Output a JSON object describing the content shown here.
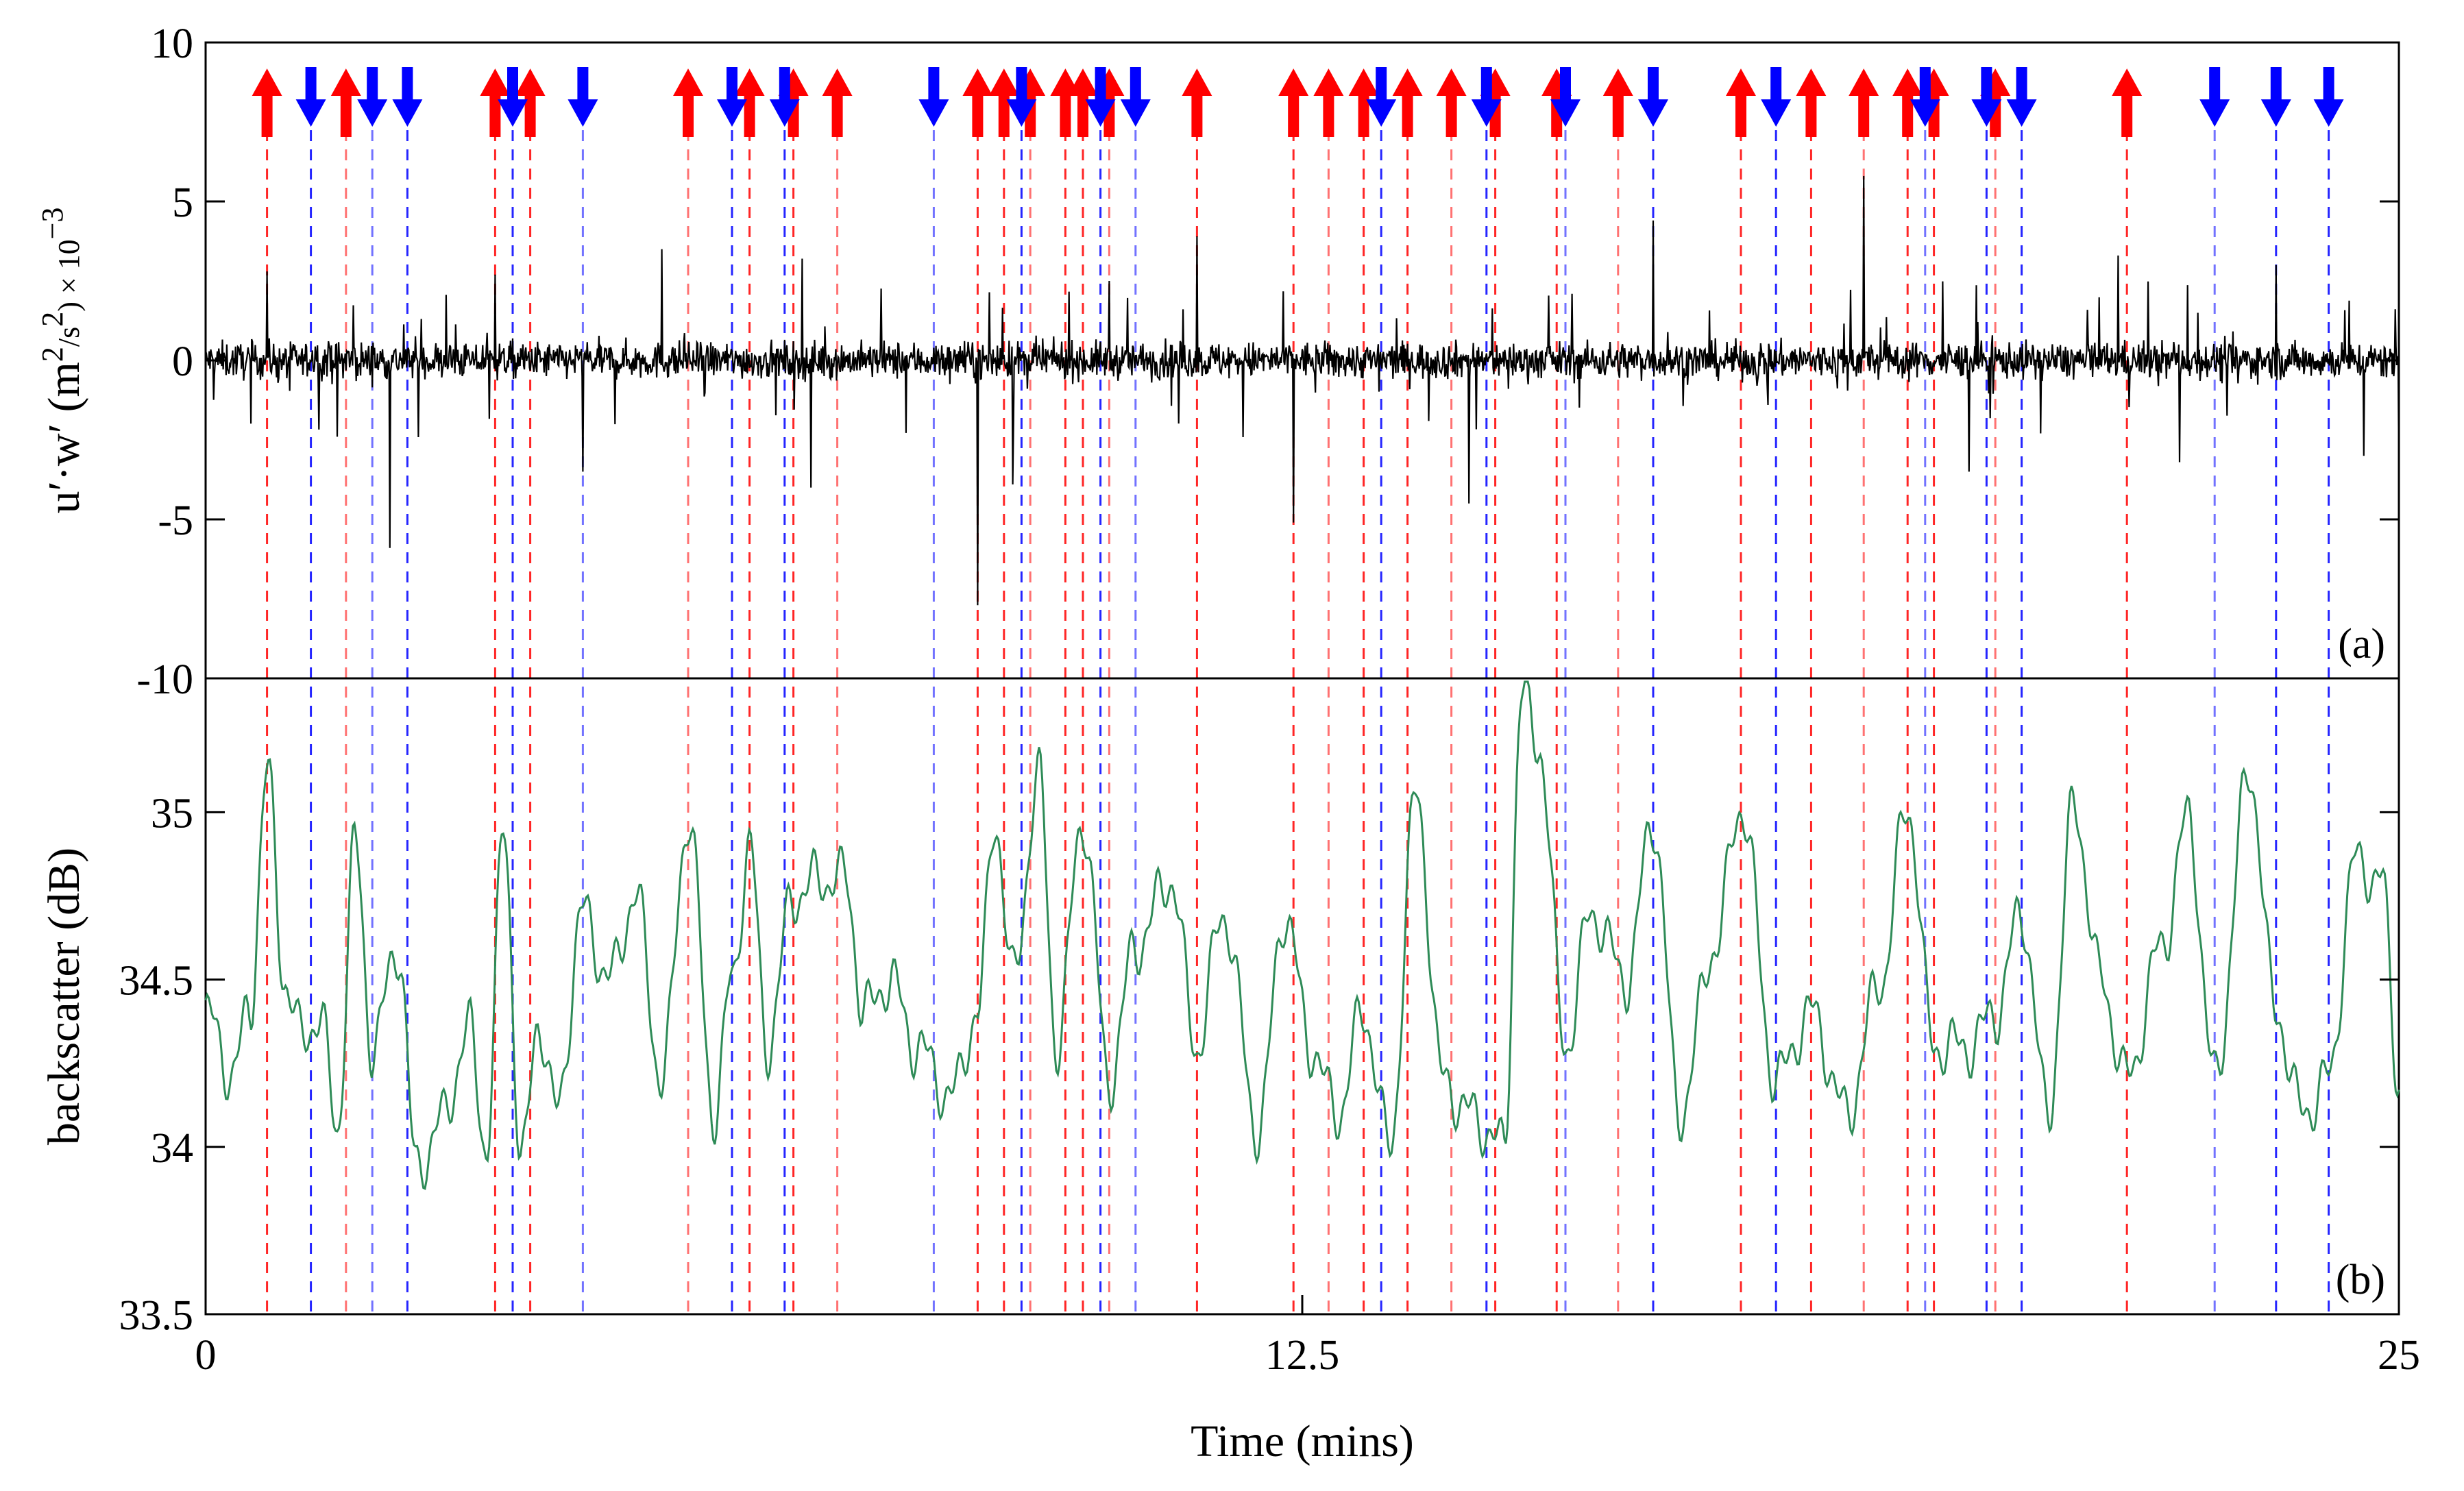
{
  "chart_data": [
    {
      "panel": "(a)",
      "type": "line",
      "ylabel": "u′·w′ (m²/s²) × 10⁻³",
      "ylabel_parts": {
        "main": "u′·w′ (m",
        "sup2": "2",
        "mid": "/s",
        "sup2b": "2",
        "tail": ") × 10",
        "exp": "−3"
      },
      "ylim": [
        -10,
        10
      ],
      "yticks": [
        10,
        5,
        0,
        -5,
        -10
      ],
      "ytick_labels": [
        "10",
        "5",
        "0",
        "-5",
        "-10"
      ],
      "xlim": [
        0,
        25
      ],
      "series": [
        {
          "color": "#000000",
          "description_points": [
            [
              0.0,
              0.3
            ],
            [
              0.7,
              2.8
            ],
            [
              1.5,
              -2.4
            ],
            [
              2.1,
              -5.9
            ],
            [
              3.3,
              2.7
            ],
            [
              4.3,
              -3.5
            ],
            [
              5.2,
              3.5
            ],
            [
              6.8,
              3.2
            ],
            [
              6.9,
              -4.0
            ],
            [
              8.8,
              -7.7
            ],
            [
              9.2,
              -3.9
            ],
            [
              10.3,
              2.5
            ],
            [
              11.3,
              3.9
            ],
            [
              12.4,
              -5.1
            ],
            [
              14.4,
              -4.5
            ],
            [
              16.5,
              4.4
            ],
            [
              18.9,
              5.8
            ],
            [
              20.1,
              -3.5
            ],
            [
              21.8,
              3.3
            ],
            [
              22.5,
              -3.2
            ],
            [
              23.6,
              3.0
            ],
            [
              24.6,
              -3.0
            ],
            [
              25.0,
              -3.5
            ]
          ]
        }
      ],
      "events_up": [
        0.7,
        1.6,
        3.3,
        3.7,
        5.5,
        6.2,
        6.7,
        7.2,
        8.8,
        9.1,
        9.4,
        9.8,
        10.0,
        10.3,
        11.3,
        12.4,
        12.8,
        13.2,
        13.7,
        14.2,
        14.7,
        15.4,
        16.1,
        17.5,
        18.3,
        18.9,
        19.4,
        19.7,
        20.4,
        21.9
      ],
      "events_down": [
        1.2,
        1.9,
        2.3,
        3.5,
        4.3,
        6.0,
        6.6,
        8.3,
        9.3,
        10.2,
        10.6,
        13.4,
        14.6,
        15.5,
        16.5,
        17.9,
        19.6,
        20.3,
        20.7,
        22.9,
        23.6,
        24.2
      ]
    },
    {
      "panel": "(b)",
      "type": "line",
      "ylabel": "backscatter (dB)",
      "xlabel": "Time (mins)",
      "ylim": [
        33.5,
        35.4
      ],
      "yticks": [
        35,
        34.5,
        34,
        33.5
      ],
      "ytick_labels": [
        "35",
        "34.5",
        "34",
        "33.5"
      ],
      "xlim": [
        0,
        25
      ],
      "xticks": [
        0,
        12.5,
        25
      ],
      "xtick_labels": [
        "0",
        "12.5",
        "25"
      ],
      "series": [
        {
          "color": "#2e8b57",
          "points": [
            [
              0.0,
              34.4
            ],
            [
              0.3,
              34.22
            ],
            [
              0.5,
              34.4
            ],
            [
              0.7,
              35.12
            ],
            [
              0.9,
              34.5
            ],
            [
              1.1,
              34.32
            ],
            [
              1.3,
              34.4
            ],
            [
              1.5,
              34.05
            ],
            [
              1.7,
              34.9
            ],
            [
              1.9,
              34.3
            ],
            [
              2.2,
              34.6
            ],
            [
              2.4,
              33.93
            ],
            [
              2.7,
              34.08
            ],
            [
              3.0,
              34.35
            ],
            [
              3.2,
              34.0
            ],
            [
              3.4,
              34.95
            ],
            [
              3.6,
              33.95
            ],
            [
              3.8,
              34.38
            ],
            [
              4.0,
              34.1
            ],
            [
              4.3,
              34.7
            ],
            [
              4.6,
              34.5
            ],
            [
              4.9,
              34.75
            ],
            [
              5.2,
              34.2
            ],
            [
              5.5,
              34.98
            ],
            [
              5.8,
              34.1
            ],
            [
              6.0,
              34.5
            ],
            [
              6.2,
              34.9
            ],
            [
              6.4,
              34.3
            ],
            [
              6.7,
              34.75
            ],
            [
              7.0,
              34.8
            ],
            [
              7.3,
              34.8
            ],
            [
              7.5,
              34.4
            ],
            [
              7.8,
              34.5
            ],
            [
              8.1,
              34.3
            ],
            [
              8.5,
              34.15
            ],
            [
              8.8,
              34.4
            ],
            [
              9.0,
              34.98
            ],
            [
              9.2,
              34.5
            ],
            [
              9.5,
              35.1
            ],
            [
              9.7,
              34.3
            ],
            [
              10.0,
              34.98
            ],
            [
              10.3,
              34.2
            ],
            [
              10.6,
              34.6
            ],
            [
              11.0,
              34.8
            ],
            [
              11.3,
              34.3
            ],
            [
              11.6,
              34.7
            ],
            [
              12.0,
              34.05
            ],
            [
              12.3,
              34.7
            ],
            [
              12.6,
              34.3
            ],
            [
              12.9,
              34.1
            ],
            [
              13.2,
              34.4
            ],
            [
              13.5,
              34.0
            ],
            [
              13.8,
              35.05
            ],
            [
              14.1,
              34.2
            ],
            [
              14.4,
              34.1
            ],
            [
              14.8,
              34.0
            ],
            [
              15.0,
              35.35
            ],
            [
              15.2,
              35.2
            ],
            [
              15.5,
              34.3
            ],
            [
              15.8,
              34.7
            ],
            [
              16.2,
              34.5
            ],
            [
              16.5,
              34.98
            ],
            [
              16.8,
              34.1
            ],
            [
              17.2,
              34.6
            ],
            [
              17.5,
              35.02
            ],
            [
              17.9,
              34.2
            ],
            [
              18.3,
              34.4
            ],
            [
              18.7,
              34.1
            ],
            [
              19.1,
              34.5
            ],
            [
              19.4,
              35.02
            ],
            [
              19.7,
              34.3
            ],
            [
              20.1,
              34.3
            ],
            [
              20.4,
              34.4
            ],
            [
              20.7,
              34.7
            ],
            [
              21.0,
              34.1
            ],
            [
              21.3,
              35.02
            ],
            [
              21.6,
              34.5
            ],
            [
              21.9,
              34.2
            ],
            [
              22.3,
              34.6
            ],
            [
              22.6,
              34.98
            ],
            [
              22.9,
              34.2
            ],
            [
              23.3,
              35.12
            ],
            [
              23.6,
              34.4
            ],
            [
              23.9,
              34.1
            ],
            [
              24.2,
              34.2
            ],
            [
              24.5,
              34.85
            ],
            [
              24.8,
              34.8
            ],
            [
              25.0,
              34.2
            ]
          ]
        }
      ]
    }
  ],
  "colors": {
    "up": "#ff0000",
    "down": "#0000ff",
    "series_a": "#000000",
    "series_b": "#2e8b57"
  }
}
